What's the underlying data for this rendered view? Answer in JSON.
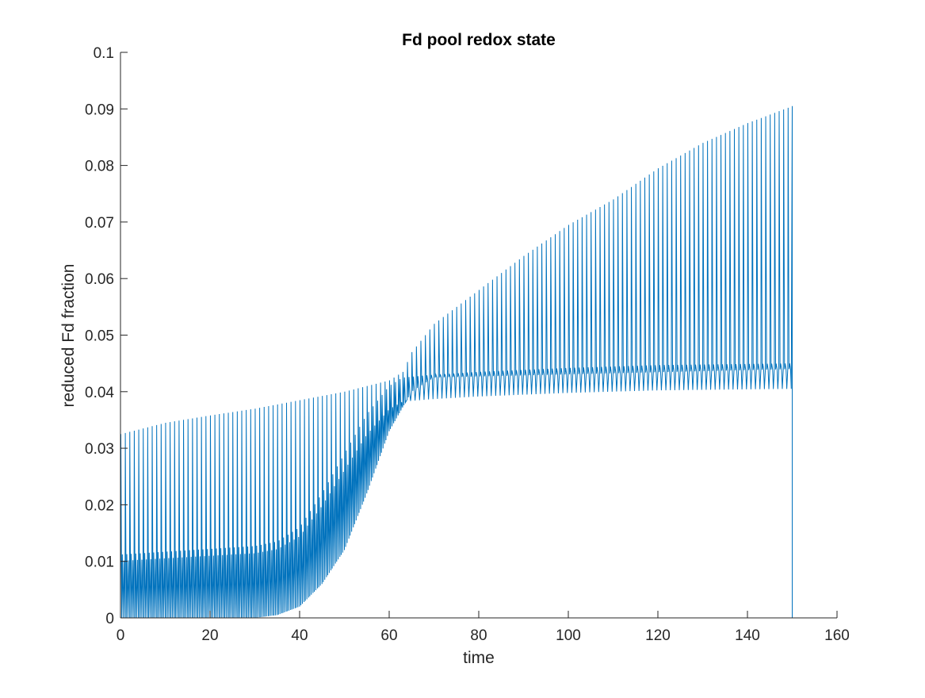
{
  "chart_data": {
    "type": "line",
    "title": "Fd pool redox state",
    "xlabel": "time",
    "ylabel": "reduced Fd fraction",
    "xlim": [
      0,
      160
    ],
    "ylim": [
      0,
      0.1
    ],
    "xticks": [
      "0",
      "20",
      "40",
      "60",
      "80",
      "100",
      "120",
      "140",
      "160"
    ],
    "yticks": [
      "0",
      "0.01",
      "0.02",
      "0.03",
      "0.04",
      "0.05",
      "0.06",
      "0.07",
      "0.08",
      "0.09",
      "0.1"
    ],
    "grid": false,
    "legend": "none",
    "line_color": "#0072BD",
    "series": [
      {
        "pulse_period": 1.0,
        "x_range": [
          0,
          150
        ],
        "upper_envelope": {
          "x": [
            0,
            10,
            20,
            30,
            40,
            50,
            55,
            60,
            63,
            65,
            70,
            80,
            90,
            100,
            110,
            120,
            130,
            140,
            150
          ],
          "y": [
            0.0325,
            0.0345,
            0.0358,
            0.037,
            0.0385,
            0.04,
            0.041,
            0.042,
            0.0435,
            0.047,
            0.052,
            0.058,
            0.064,
            0.0695,
            0.074,
            0.0795,
            0.084,
            0.0875,
            0.0905
          ]
        },
        "secondary_envelope": {
          "x": [
            0,
            10,
            20,
            30,
            35,
            40,
            45,
            50,
            55,
            60,
            63,
            70,
            80,
            100,
            120,
            150
          ],
          "y": [
            0.0112,
            0.0117,
            0.0122,
            0.0127,
            0.0135,
            0.016,
            0.022,
            0.029,
            0.036,
            0.041,
            0.0425,
            0.043,
            0.0435,
            0.0442,
            0.0447,
            0.045
          ]
        },
        "baseline_envelope": {
          "x": [
            0,
            30,
            35,
            40,
            45,
            50,
            55,
            60,
            65,
            70,
            150
          ],
          "y": [
            0,
            0,
            0.0005,
            0.002,
            0.006,
            0.012,
            0.022,
            0.033,
            0.04,
            0.0425,
            0.044
          ]
        }
      }
    ]
  }
}
